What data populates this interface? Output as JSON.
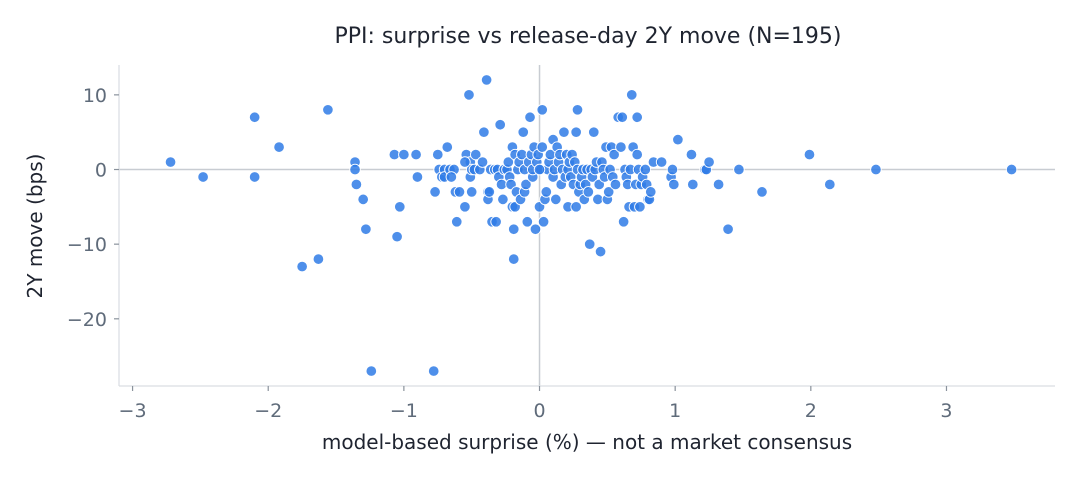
{
  "chart_data": {
    "type": "scatter",
    "title": "PPI: surprise vs release-day 2Y move (N=195)",
    "xlabel": "model-based surprise (%) — not a market consensus",
    "ylabel": "2Y move (bps)",
    "xlim": [
      -3.1,
      3.8
    ],
    "ylim": [
      -29,
      14
    ],
    "xticks": [
      -3,
      -2,
      -1,
      0,
      1,
      2,
      3
    ],
    "xtick_labels": [
      "−3",
      "−2",
      "−1",
      "0",
      "1",
      "2",
      "3"
    ],
    "yticks": [
      10,
      0,
      -10,
      -20
    ],
    "ytick_labels": [
      "10",
      "0",
      "−10",
      "−20"
    ],
    "reference_lines": {
      "x": 0,
      "y": 0
    },
    "grid": false,
    "colors": {
      "points": "#2f7be6",
      "point_edge": "#ffffff",
      "reference": "#c8ccd2",
      "axes": "#d9dde2"
    },
    "points": [
      [
        -2.72,
        1
      ],
      [
        -2.48,
        -1
      ],
      [
        -2.1,
        7
      ],
      [
        -2.1,
        -1
      ],
      [
        -1.92,
        3
      ],
      [
        -1.75,
        -13
      ],
      [
        -1.63,
        -12
      ],
      [
        -1.56,
        8
      ],
      [
        -1.36,
        1
      ],
      [
        -1.36,
        0
      ],
      [
        -1.35,
        -2
      ],
      [
        -1.3,
        -4
      ],
      [
        -1.28,
        -8
      ],
      [
        -1.24,
        -27
      ],
      [
        -1.07,
        2
      ],
      [
        -1.05,
        -9
      ],
      [
        -1.03,
        -5
      ],
      [
        -1.0,
        2
      ],
      [
        -0.91,
        2
      ],
      [
        -0.9,
        -1
      ],
      [
        -0.78,
        -27
      ],
      [
        -0.77,
        -3
      ],
      [
        -0.75,
        2
      ],
      [
        -0.74,
        0
      ],
      [
        -0.72,
        -1
      ],
      [
        -0.7,
        0
      ],
      [
        -0.7,
        -1
      ],
      [
        -0.68,
        3
      ],
      [
        -0.66,
        0
      ],
      [
        -0.63,
        0
      ],
      [
        -0.62,
        -3
      ],
      [
        -0.61,
        -7
      ],
      [
        -0.59,
        -3
      ],
      [
        -0.55,
        -5
      ],
      [
        -0.54,
        2
      ],
      [
        -0.52,
        10
      ],
      [
        -0.51,
        1
      ],
      [
        -0.51,
        -1
      ],
      [
        -0.5,
        0
      ],
      [
        -0.5,
        -3
      ],
      [
        -0.48,
        0
      ],
      [
        -0.47,
        2
      ],
      [
        -0.44,
        0
      ],
      [
        -0.42,
        1
      ],
      [
        -0.41,
        5
      ],
      [
        -0.39,
        12
      ],
      [
        -0.38,
        -3
      ],
      [
        -0.38,
        -4
      ],
      [
        -0.37,
        -3
      ],
      [
        -0.36,
        0
      ],
      [
        -0.35,
        -7
      ],
      [
        -0.33,
        0
      ],
      [
        -0.32,
        -7
      ],
      [
        -0.31,
        0
      ],
      [
        -0.3,
        -1
      ],
      [
        -0.29,
        6
      ],
      [
        -0.28,
        -2
      ],
      [
        -0.27,
        -4
      ],
      [
        -0.26,
        0
      ],
      [
        -0.24,
        0
      ],
      [
        -0.23,
        1
      ],
      [
        -0.22,
        -1
      ],
      [
        -0.21,
        -2
      ],
      [
        -0.2,
        3
      ],
      [
        -0.2,
        -5
      ],
      [
        -0.19,
        -12
      ],
      [
        -0.19,
        -8
      ],
      [
        -0.18,
        2
      ],
      [
        -0.18,
        -5
      ],
      [
        -0.17,
        -3
      ],
      [
        -0.16,
        0
      ],
      [
        -0.15,
        1
      ],
      [
        -0.14,
        -4
      ],
      [
        -0.13,
        2
      ],
      [
        -0.12,
        5
      ],
      [
        -0.11,
        0
      ],
      [
        -0.11,
        -3
      ],
      [
        -0.1,
        -2
      ],
      [
        -0.09,
        -7
      ],
      [
        -0.08,
        1
      ],
      [
        -0.07,
        7
      ],
      [
        -0.06,
        2
      ],
      [
        -0.05,
        -1
      ],
      [
        -0.05,
        0
      ],
      [
        -0.04,
        3
      ],
      [
        -0.03,
        -8
      ],
      [
        -0.02,
        1
      ],
      [
        -0.01,
        2
      ],
      [
        0.0,
        -5
      ],
      [
        0.01,
        0
      ],
      [
        0.02,
        8
      ],
      [
        0.02,
        3
      ],
      [
        0.03,
        -7
      ],
      [
        0.04,
        -4
      ],
      [
        0.05,
        -3
      ],
      [
        0.06,
        0
      ],
      [
        0.07,
        1
      ],
      [
        0.08,
        2
      ],
      [
        0.1,
        4
      ],
      [
        0.1,
        -1
      ],
      [
        0.11,
        0
      ],
      [
        0.12,
        -4
      ],
      [
        0.13,
        3
      ],
      [
        0.14,
        1
      ],
      [
        0.15,
        2
      ],
      [
        0.16,
        -2
      ],
      [
        0.17,
        0
      ],
      [
        0.18,
        5
      ],
      [
        0.19,
        -1
      ],
      [
        0.2,
        2
      ],
      [
        0.21,
        -5
      ],
      [
        0.21,
        0
      ],
      [
        0.22,
        1
      ],
      [
        0.23,
        -1
      ],
      [
        0.24,
        2
      ],
      [
        0.25,
        -2
      ],
      [
        0.26,
        1
      ],
      [
        0.27,
        5
      ],
      [
        0.27,
        -5
      ],
      [
        0.28,
        8
      ],
      [
        0.28,
        0
      ],
      [
        0.29,
        -3
      ],
      [
        0.3,
        -2
      ],
      [
        0.31,
        -1
      ],
      [
        0.32,
        0
      ],
      [
        0.33,
        -4
      ],
      [
        0.34,
        -2
      ],
      [
        0.35,
        0
      ],
      [
        0.36,
        -3
      ],
      [
        0.37,
        -10
      ],
      [
        0.38,
        0
      ],
      [
        0.39,
        -1
      ],
      [
        0.4,
        5
      ],
      [
        0.41,
        0
      ],
      [
        0.42,
        1
      ],
      [
        0.43,
        -4
      ],
      [
        0.44,
        -2
      ],
      [
        0.45,
        -11
      ],
      [
        0.46,
        1
      ],
      [
        0.47,
        0
      ],
      [
        0.48,
        -1
      ],
      [
        0.49,
        3
      ],
      [
        0.5,
        -4
      ],
      [
        0.51,
        -3
      ],
      [
        0.52,
        0
      ],
      [
        0.53,
        3
      ],
      [
        0.54,
        -1
      ],
      [
        0.55,
        2
      ],
      [
        0.56,
        -2
      ],
      [
        0.58,
        7
      ],
      [
        0.6,
        3
      ],
      [
        0.61,
        7
      ],
      [
        0.62,
        -7
      ],
      [
        0.63,
        0
      ],
      [
        0.64,
        -1
      ],
      [
        0.65,
        -2
      ],
      [
        0.66,
        -5
      ],
      [
        0.67,
        0
      ],
      [
        0.68,
        10
      ],
      [
        0.69,
        3
      ],
      [
        0.7,
        -5
      ],
      [
        0.71,
        -2
      ],
      [
        0.72,
        7
      ],
      [
        0.72,
        2
      ],
      [
        0.73,
        0
      ],
      [
        0.74,
        -5
      ],
      [
        0.75,
        -2
      ],
      [
        0.76,
        -1
      ],
      [
        0.78,
        0
      ],
      [
        0.79,
        -2
      ],
      [
        0.8,
        -4
      ],
      [
        0.81,
        -4
      ],
      [
        0.82,
        -3
      ],
      [
        0.84,
        1
      ],
      [
        0.9,
        1
      ],
      [
        0.97,
        -1
      ],
      [
        0.98,
        0
      ],
      [
        0.99,
        -2
      ],
      [
        1.02,
        4
      ],
      [
        1.12,
        2
      ],
      [
        1.13,
        -2
      ],
      [
        1.22,
        0
      ],
      [
        1.23,
        0
      ],
      [
        1.25,
        1
      ],
      [
        1.32,
        -2
      ],
      [
        1.39,
        -8
      ],
      [
        1.47,
        0
      ],
      [
        1.64,
        -3
      ],
      [
        1.99,
        2
      ],
      [
        2.14,
        -2
      ],
      [
        2.48,
        0
      ],
      [
        3.48,
        0
      ],
      [
        -0.55,
        1
      ],
      [
        0.0,
        0
      ],
      [
        -0.65,
        -1
      ]
    ]
  }
}
